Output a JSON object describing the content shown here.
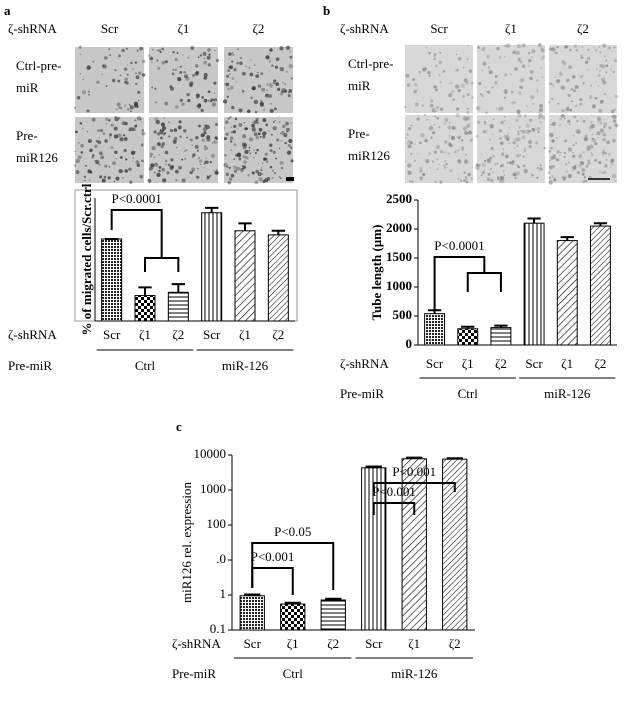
{
  "panels": [
    {
      "letter": "a",
      "row_header": "ζ-shRNA",
      "columns": [
        "Scr",
        "ζ1",
        "ζ2"
      ],
      "rows": [
        "Ctrl-pre-miR",
        "Pre-miR126"
      ]
    },
    {
      "letter": "b",
      "row_header": "ζ-shRNA",
      "columns": [
        "Scr",
        "ζ1",
        "ζ2"
      ],
      "rows": [
        "Ctrl-pre-miR",
        "Pre-miR126"
      ]
    },
    {
      "letter": "c"
    }
  ],
  "chart_data": [
    {
      "type": "bar",
      "ylabel": "% of migrated cells/Scr.ctrl",
      "categories": [
        "Scr",
        "ζ1",
        "ζ2",
        "Scr",
        "ζ1",
        "ζ2"
      ],
      "groups": [
        "Ctrl",
        "miR-126"
      ],
      "row_labels": [
        "ζ-shRNA",
        "Pre-miR"
      ],
      "values": [
        100,
        31,
        35,
        132,
        110,
        105
      ],
      "errors": [
        0,
        10,
        10,
        6,
        9,
        5
      ],
      "ylim": [
        0,
        150
      ],
      "color": "#000",
      "annotations": [
        "P<0.0001"
      ]
    },
    {
      "type": "bar",
      "ylabel": "Tube length (µm)",
      "categories": [
        "Scr",
        "ζ1",
        "ζ2",
        "Scr",
        "ζ1",
        "ζ2"
      ],
      "groups": [
        "Ctrl",
        "miR-126"
      ],
      "row_labels": [
        "ζ-shRNA",
        "Pre-miR"
      ],
      "values": [
        540,
        280,
        300,
        2100,
        1800,
        2050
      ],
      "errors": [
        60,
        35,
        35,
        80,
        60,
        50
      ],
      "ylim": [
        0,
        2500
      ],
      "yticks": [
        0,
        500,
        1000,
        1500,
        2000,
        2500
      ],
      "color": "#000",
      "annotations": [
        "P<0.0001"
      ]
    },
    {
      "type": "bar",
      "ylabel": "miR126 rel. expression",
      "categories": [
        "Scr",
        "ζ1",
        "ζ2",
        "Scr",
        "ζ1",
        "ζ2"
      ],
      "groups": [
        "Ctrl",
        "miR-126"
      ],
      "row_labels": [
        "ζ-shRNA",
        "Pre-miR"
      ],
      "values": [
        0.95,
        0.55,
        0.72,
        4300,
        7800,
        7600
      ],
      "errors": [
        0.08,
        0.05,
        0.06,
        400,
        600,
        500
      ],
      "log_scale": true,
      "ylim": [
        0.1,
        10000
      ],
      "yticks": [
        0.1,
        1,
        {
          "value": 10,
          "label": ".0"
        },
        100,
        1000,
        10000
      ],
      "color": "#000",
      "annotations": [
        "P<0.05",
        "P<0.001",
        "P<0.001",
        "P<0.001"
      ]
    }
  ]
}
